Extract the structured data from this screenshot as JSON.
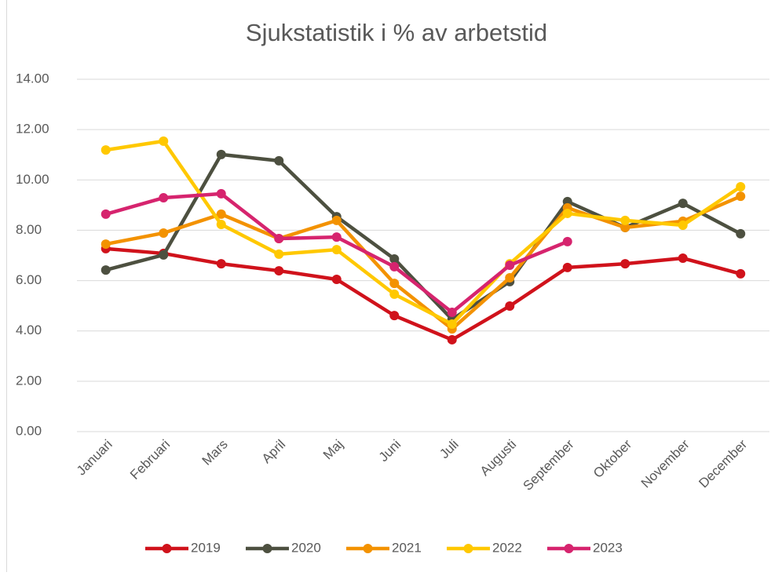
{
  "chart_data": {
    "type": "line",
    "title": "Sjukstatistik i % av arbetstid",
    "categories": [
      "Januari",
      "Februari",
      "Mars",
      "April",
      "Maj",
      "Juni",
      "Juli",
      "Augusti",
      "September",
      "Oktober",
      "November",
      "December"
    ],
    "series": [
      {
        "name": "2019",
        "color": "#d0121b",
        "values": [
          7.27,
          7.08,
          6.67,
          6.39,
          6.05,
          4.61,
          3.65,
          4.99,
          6.52,
          6.67,
          6.89,
          6.27
        ]
      },
      {
        "name": "2020",
        "color": "#4d5040",
        "values": [
          6.42,
          7.02,
          11.01,
          10.76,
          8.54,
          6.86,
          4.46,
          5.96,
          9.14,
          8.11,
          9.07,
          7.86
        ]
      },
      {
        "name": "2021",
        "color": "#f39200",
        "values": [
          7.45,
          7.89,
          8.64,
          7.67,
          8.39,
          5.89,
          4.08,
          6.11,
          8.89,
          8.11,
          8.36,
          9.35
        ]
      },
      {
        "name": "2022",
        "color": "#ffc800",
        "values": [
          11.19,
          11.54,
          8.23,
          7.05,
          7.23,
          5.46,
          4.27,
          6.67,
          8.67,
          8.39,
          8.2,
          9.73
        ]
      },
      {
        "name": "2023",
        "color": "#d6246e",
        "values": [
          8.64,
          9.29,
          9.45,
          7.67,
          7.73,
          6.55,
          4.74,
          6.61,
          7.55,
          null,
          null,
          null
        ]
      }
    ],
    "ylim": [
      0,
      14
    ],
    "yticks": [
      {
        "value": 0,
        "label": "0.00"
      },
      {
        "value": 2,
        "label": "2.00"
      },
      {
        "value": 4,
        "label": "4.00"
      },
      {
        "value": 6,
        "label": "6.00"
      },
      {
        "value": 8,
        "label": "8.00"
      },
      {
        "value": 10,
        "label": "10.00"
      },
      {
        "value": 12,
        "label": "12.00"
      },
      {
        "value": 14,
        "label": "14.00"
      }
    ],
    "grid": true,
    "legend": "bottom"
  }
}
